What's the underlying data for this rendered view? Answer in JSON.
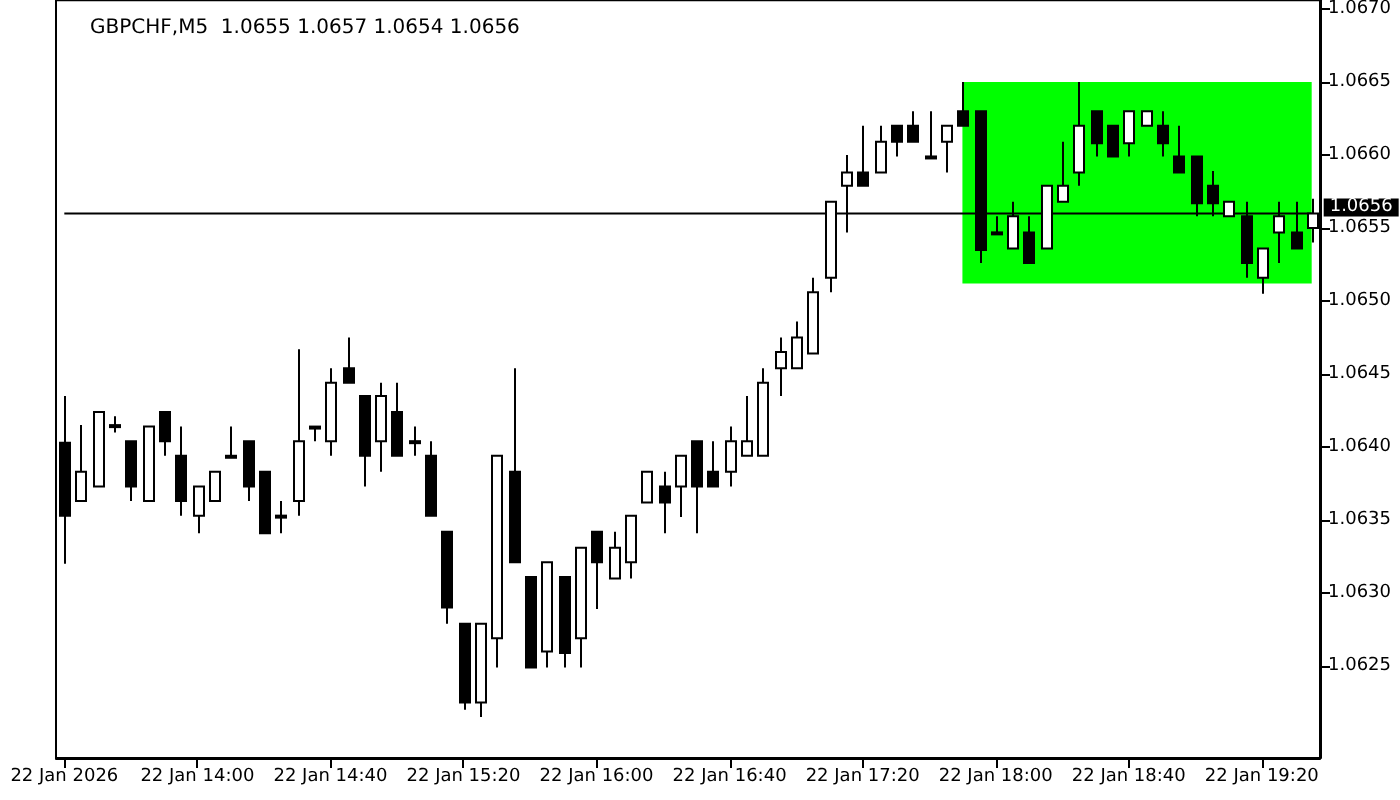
{
  "chart_data": {
    "type": "candlestick",
    "title": "GBPCHF,M5  1.0655 1.0657 1.0654 1.0656",
    "categories": [
      "22 Jan 2026",
      null,
      null,
      null,
      null,
      null,
      null,
      null,
      "22 Jan 14:00",
      null,
      null,
      null,
      null,
      null,
      null,
      null,
      "22 Jan 14:40",
      null,
      null,
      null,
      null,
      null,
      null,
      null,
      "22 Jan 15:20",
      null,
      null,
      null,
      null,
      null,
      null,
      null,
      "22 Jan 16:00",
      null,
      null,
      null,
      null,
      null,
      null,
      null,
      "22 Jan 16:40",
      null,
      null,
      null,
      null,
      null,
      null,
      null,
      "22 Jan 17:20",
      null,
      null,
      null,
      null,
      null,
      null,
      null,
      "22 Jan 18:00",
      null,
      null,
      null,
      null,
      null,
      null,
      null,
      "22 Jan 18:40",
      null,
      null,
      null,
      null,
      null,
      null,
      null,
      "22 Jan 19:20",
      null,
      null,
      null
    ],
    "ohlc": [
      [
        1.06403,
        1.06435,
        1.0632,
        1.06353
      ],
      [
        1.06363,
        1.06415,
        1.06363,
        1.06383
      ],
      [
        1.06373,
        1.06424,
        1.06373,
        1.06424
      ],
      [
        1.06415,
        1.06421,
        1.0641,
        1.06415
      ],
      [
        1.06404,
        1.06404,
        1.06363,
        1.06373
      ],
      [
        1.06363,
        1.06414,
        1.06363,
        1.06414
      ],
      [
        1.06424,
        1.06424,
        1.06394,
        1.06404
      ],
      [
        1.06394,
        1.06414,
        1.06353,
        1.06363
      ],
      [
        1.06353,
        1.06373,
        1.06341,
        1.06373
      ],
      [
        1.06363,
        1.06383,
        1.06363,
        1.06383
      ],
      [
        1.06394,
        1.06414,
        1.06394,
        1.06394
      ],
      [
        1.06404,
        1.06404,
        1.06363,
        1.06373
      ],
      [
        1.06383,
        1.06383,
        1.06341,
        1.06341
      ],
      [
        1.06353,
        1.06363,
        1.06341,
        1.06353
      ],
      [
        1.06363,
        1.06467,
        1.06353,
        1.06404
      ],
      [
        1.06414,
        1.06414,
        1.06404,
        1.06414
      ],
      [
        1.06404,
        1.06454,
        1.06394,
        1.06444
      ],
      [
        1.06454,
        1.06475,
        1.06444,
        1.06444
      ],
      [
        1.06435,
        1.06435,
        1.06373,
        1.06394
      ],
      [
        1.06404,
        1.06444,
        1.06383,
        1.06435
      ],
      [
        1.06424,
        1.06444,
        1.06394,
        1.06394
      ],
      [
        1.06404,
        1.06414,
        1.06394,
        1.06404
      ],
      [
        1.06394,
        1.06404,
        1.06353,
        1.06353
      ],
      [
        1.06342,
        1.06342,
        1.06279,
        1.0629
      ],
      [
        1.06279,
        1.06279,
        1.0622,
        1.06225
      ],
      [
        1.06225,
        1.06279,
        1.06215,
        1.06279
      ],
      [
        1.06269,
        1.06394,
        1.06249,
        1.06394
      ],
      [
        1.06383,
        1.06454,
        1.06321,
        1.06321
      ],
      [
        1.06311,
        1.06311,
        1.06249,
        1.06249
      ],
      [
        1.0626,
        1.06321,
        1.06249,
        1.06321
      ],
      [
        1.06311,
        1.06311,
        1.06249,
        1.06259
      ],
      [
        1.06269,
        1.06331,
        1.06249,
        1.06331
      ],
      [
        1.06342,
        1.06342,
        1.06289,
        1.06321
      ],
      [
        1.0631,
        1.06342,
        1.0631,
        1.06331
      ],
      [
        1.06321,
        1.06353,
        1.0631,
        1.06353
      ],
      [
        1.06362,
        1.06383,
        1.06362,
        1.06383
      ],
      [
        1.06373,
        1.06383,
        1.06341,
        1.06362
      ],
      [
        1.06373,
        1.06394,
        1.06352,
        1.06394
      ],
      [
        1.06404,
        1.06404,
        1.06341,
        1.06373
      ],
      [
        1.06383,
        1.06404,
        1.06373,
        1.06373
      ],
      [
        1.06383,
        1.06414,
        1.06373,
        1.06404
      ],
      [
        1.06394,
        1.06435,
        1.06394,
        1.06404
      ],
      [
        1.06394,
        1.06454,
        1.06394,
        1.06444
      ],
      [
        1.06454,
        1.06475,
        1.06435,
        1.06465
      ],
      [
        1.06454,
        1.06486,
        1.06454,
        1.06475
      ],
      [
        1.06464,
        1.06516,
        1.06464,
        1.06506
      ],
      [
        1.06516,
        1.06568,
        1.06506,
        1.06568
      ],
      [
        1.06579,
        1.066,
        1.06547,
        1.06588
      ],
      [
        1.06588,
        1.0662,
        1.06579,
        1.06579
      ],
      [
        1.06588,
        1.0662,
        1.06588,
        1.06609
      ],
      [
        1.0662,
        1.0662,
        1.06599,
        1.06609
      ],
      [
        1.0662,
        1.0663,
        1.06609,
        1.06609
      ],
      [
        1.06599,
        1.0663,
        1.06599,
        1.06599
      ],
      [
        1.06609,
        1.0662,
        1.06588,
        1.0662
      ],
      [
        1.0663,
        1.0665,
        1.0662,
        1.0662
      ],
      [
        1.0663,
        1.0663,
        1.06526,
        1.06535
      ],
      [
        1.06547,
        1.06558,
        1.06547,
        1.06547
      ],
      [
        1.06536,
        1.06568,
        1.06536,
        1.06558
      ],
      [
        1.06547,
        1.06558,
        1.06526,
        1.06526
      ],
      [
        1.06536,
        1.06579,
        1.06536,
        1.06579
      ],
      [
        1.06568,
        1.06609,
        1.06568,
        1.06579
      ],
      [
        1.06588,
        1.0665,
        1.06579,
        1.0662
      ],
      [
        1.0663,
        1.0663,
        1.06599,
        1.06608
      ],
      [
        1.0662,
        1.0662,
        1.06599,
        1.06599
      ],
      [
        1.06608,
        1.0663,
        1.06599,
        1.0663
      ],
      [
        1.0662,
        1.0663,
        1.0662,
        1.0663
      ],
      [
        1.0662,
        1.0663,
        1.06599,
        1.06608
      ],
      [
        1.06599,
        1.0662,
        1.06588,
        1.06588
      ],
      [
        1.06599,
        1.06599,
        1.06558,
        1.06567
      ],
      [
        1.06579,
        1.06589,
        1.06558,
        1.06567
      ],
      [
        1.06558,
        1.06568,
        1.06558,
        1.06568
      ],
      [
        1.06558,
        1.06568,
        1.06516,
        1.06526
      ],
      [
        1.06516,
        1.06536,
        1.06505,
        1.06536
      ],
      [
        1.06547,
        1.06568,
        1.06526,
        1.06558
      ],
      [
        1.06547,
        1.06568,
        1.06536,
        1.06536
      ],
      [
        1.0655,
        1.0657,
        1.0654,
        1.0656
      ]
    ],
    "ylim": [
      1.06187,
      1.06706
    ],
    "yticks": [
      {
        "value": 1.0625,
        "label": "1.0625"
      },
      {
        "value": 1.063,
        "label": "1.0630"
      },
      {
        "value": 1.0635,
        "label": "1.0635"
      },
      {
        "value": 1.064,
        "label": "1.0640"
      },
      {
        "value": 1.0645,
        "label": "1.0645"
      },
      {
        "value": 1.065,
        "label": "1.0650"
      },
      {
        "value": 1.0655,
        "label": "1.0655"
      },
      {
        "value": 1.066,
        "label": "1.0660"
      },
      {
        "value": 1.0665,
        "label": "1.0665"
      },
      {
        "value": 1.067,
        "label": "1.0670"
      }
    ],
    "ref_lines": [
      {
        "axis": "y",
        "value": 1.0656,
        "label": "1.0656",
        "color": "#000000"
      }
    ],
    "bands": [
      {
        "axis": "y",
        "from": 1.06512,
        "to": 1.0665,
        "color": "#00ff00"
      }
    ]
  }
}
